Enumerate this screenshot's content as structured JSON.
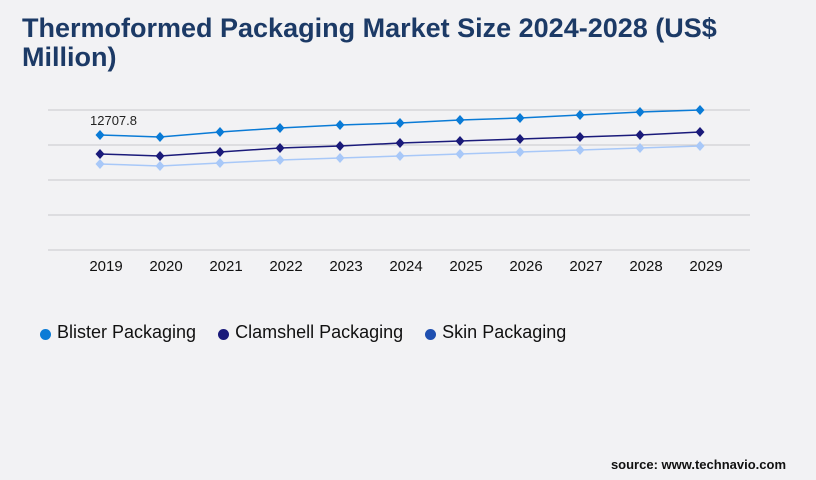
{
  "chart_data": {
    "type": "line",
    "title": "Thermoformed Packaging Market Size 2024-2028 (US$ Million)",
    "categories": [
      "2019",
      "2020",
      "2021",
      "2022",
      "2023",
      "2024",
      "2025",
      "2026",
      "2027",
      "2028",
      "2029"
    ],
    "series": [
      {
        "name": "Blister Packaging",
        "color": "#0a7bd6",
        "legend_color": "#0a7bd6",
        "values": [
          12707.8,
          12487,
          13039,
          13481,
          13813,
          14034,
          14365,
          14586,
          14918,
          15249,
          15470
        ]
      },
      {
        "name": "Clamshell Packaging",
        "color": "#1a1a7a",
        "legend_color": "#1a1a7a",
        "values": [
          10608,
          10387,
          10829,
          11271,
          11492,
          11824,
          12045,
          12266,
          12487,
          12708,
          13039
        ]
      },
      {
        "name": "Skin Packaging",
        "color": "#a8c8f8",
        "legend_color": "#1f4fb0",
        "values": [
          9503,
          9282,
          9614,
          9945,
          10166,
          10387,
          10608,
          10829,
          11050,
          11271,
          11492
        ]
      }
    ],
    "annotations": [
      {
        "category": "2019",
        "series": "Blister Packaging",
        "text": "12707.8"
      }
    ],
    "ylim": [
      0,
      15470
    ],
    "y_tick_labels_shown": false,
    "grid": true,
    "legend_placement": "bottom-left",
    "marker": "diamond"
  },
  "source": "source: www.technavio.com"
}
